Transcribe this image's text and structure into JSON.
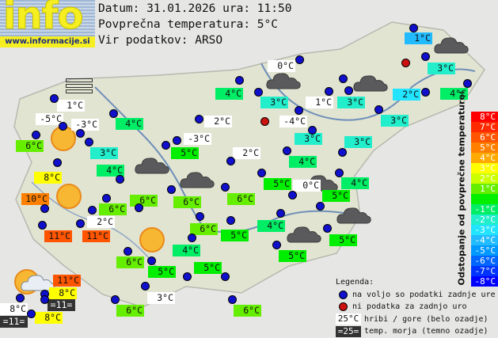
{
  "header": {
    "logo_text": "info",
    "logo_url": "www.informacije.si",
    "date_line": "Datum: 31.01.2026 ura: 11:50",
    "avg_line": "Povprečna temperatura: 5°C",
    "source_line": "Vir podatkov: ARSO"
  },
  "average_temp": 5,
  "scale": {
    "title": "Odstopanje od povprečne temperature:",
    "rows": [
      {
        "label": "8°C",
        "dev": 8,
        "color": "#ff0000"
      },
      {
        "label": "7°C",
        "dev": 7,
        "color": "#ff2a00"
      },
      {
        "label": "6°C",
        "dev": 6,
        "color": "#ff5500"
      },
      {
        "label": "5°C",
        "dev": 5,
        "color": "#ff8000"
      },
      {
        "label": "4°C",
        "dev": 4,
        "color": "#ffaa00"
      },
      {
        "label": "3°C",
        "dev": 3,
        "color": "#ffff00"
      },
      {
        "label": "2°C",
        "dev": 2,
        "color": "#ccff00"
      },
      {
        "label": "1°C",
        "dev": 1,
        "color": "#66ee00"
      },
      {
        "label": "",
        "dev": 0,
        "color": "#00ee00"
      },
      {
        "label": "-1°C",
        "dev": -1,
        "color": "#00ee66"
      },
      {
        "label": "-2°C",
        "dev": -2,
        "color": "#22eecc"
      },
      {
        "label": "-3°C",
        "dev": -3,
        "color": "#22e4ff"
      },
      {
        "label": "-4°C",
        "dev": -4,
        "color": "#22bbff"
      },
      {
        "label": "-5°C",
        "dev": -5,
        "color": "#0099ff"
      },
      {
        "label": "-6°C",
        "dev": -6,
        "color": "#0066ff"
      },
      {
        "label": "-7°C",
        "dev": -7,
        "color": "#0033ff"
      },
      {
        "label": "-8°C",
        "dev": -8,
        "color": "#0000ff"
      }
    ]
  },
  "legend": {
    "title": "Legenda:",
    "blue_dot": "na voljo so podatki zadnje ure",
    "red_dot": "ni podatka za zadnjo uro",
    "hill_sample": "25°C",
    "hill_text": "hribi / gore (belo ozadje)",
    "sea_sample": "=25=",
    "sea_text": "temp. morja (temno ozadje)"
  },
  "stations": [
    {
      "label": "1°C",
      "temp": 1,
      "type": "valley"
    },
    {
      "label": "3°C",
      "temp": 3,
      "type": "valley"
    },
    {
      "label": "4°C",
      "temp": 4,
      "type": "valley"
    },
    {
      "label": "2°C",
      "temp": 2,
      "type": "valley"
    },
    {
      "label": "0°C",
      "temp": 0,
      "type": "hill"
    },
    {
      "label": "4°C",
      "temp": 4,
      "type": "valley"
    },
    {
      "label": "3°C",
      "temp": 3,
      "type": "valley"
    },
    {
      "label": "1°C",
      "temp": 1,
      "type": "hill"
    },
    {
      "label": "3°C",
      "temp": 3,
      "type": "valley"
    },
    {
      "label": "-4°C",
      "temp": -4,
      "type": "hill"
    },
    {
      "label": "3°C",
      "temp": 3,
      "type": "valley"
    },
    {
      "label": "3°C",
      "temp": 3,
      "type": "valley"
    },
    {
      "label": "3°C",
      "temp": 3,
      "type": "valley"
    },
    {
      "label": "4°C",
      "temp": 4,
      "type": "valley"
    },
    {
      "label": "4°C",
      "temp": 4,
      "type": "valley"
    },
    {
      "label": "5°C",
      "temp": 5,
      "type": "valley"
    },
    {
      "label": "0°C",
      "temp": 0,
      "type": "hill"
    },
    {
      "label": "5°C",
      "temp": 5,
      "type": "valley"
    },
    {
      "label": "4°C",
      "temp": 4,
      "type": "valley"
    },
    {
      "label": "5°C",
      "temp": 5,
      "type": "valley"
    },
    {
      "label": "5°C",
      "temp": 5,
      "type": "valley"
    },
    {
      "label": "2°C",
      "temp": 2,
      "type": "hill"
    },
    {
      "label": "1°C",
      "temp": 1,
      "type": "hill"
    },
    {
      "label": "-5°C",
      "temp": -5,
      "type": "hill"
    },
    {
      "label": "-3°C",
      "temp": -3,
      "type": "hill"
    },
    {
      "label": "6°C",
      "temp": 6,
      "type": "valley"
    },
    {
      "label": "3°C",
      "temp": 3,
      "type": "valley"
    },
    {
      "label": "8°C",
      "temp": 8,
      "type": "valley"
    },
    {
      "label": "4°C",
      "temp": 4,
      "type": "valley"
    },
    {
      "label": "4°C",
      "temp": 4,
      "type": "valley"
    },
    {
      "label": "2°C",
      "temp": 2,
      "type": "hill"
    },
    {
      "label": "-3°C",
      "temp": -3,
      "type": "hill"
    },
    {
      "label": "5°C",
      "temp": 5,
      "type": "valley"
    },
    {
      "label": "10°C",
      "temp": 10,
      "type": "valley"
    },
    {
      "label": "11°C",
      "temp": 11,
      "type": "valley"
    },
    {
      "label": "11°C",
      "temp": 11,
      "type": "valley"
    },
    {
      "label": "6°C",
      "temp": 6,
      "type": "valley"
    },
    {
      "label": "2°C",
      "temp": 2,
      "type": "hill"
    },
    {
      "label": "6°C",
      "temp": 6,
      "type": "valley"
    },
    {
      "label": "6°C",
      "temp": 6,
      "type": "valley"
    },
    {
      "label": "6°C",
      "temp": 6,
      "type": "valley"
    },
    {
      "label": "6°C",
      "temp": 6,
      "type": "valley"
    },
    {
      "label": "5°C",
      "temp": 5,
      "type": "valley"
    },
    {
      "label": "4°C",
      "temp": 4,
      "type": "valley"
    },
    {
      "label": "6°C",
      "temp": 6,
      "type": "valley"
    },
    {
      "label": "5°C",
      "temp": 5,
      "type": "valley"
    },
    {
      "label": "5°C",
      "temp": 5,
      "type": "valley"
    },
    {
      "label": "11°C",
      "temp": 11,
      "type": "valley"
    },
    {
      "label": "8°C",
      "temp": 8,
      "type": "valley"
    },
    {
      "label": "=11=",
      "temp": 11,
      "type": "sea"
    },
    {
      "label": "8°C",
      "temp": 8,
      "type": "hill"
    },
    {
      "label": "=11=",
      "temp": 11,
      "type": "sea"
    },
    {
      "label": "8°C",
      "temp": 8,
      "type": "valley"
    },
    {
      "label": "6°C",
      "temp": 6,
      "type": "valley"
    },
    {
      "label": "3°C",
      "temp": 3,
      "type": "hill"
    },
    {
      "label": "6°C",
      "temp": 6,
      "type": "valley"
    }
  ],
  "weather_icons": [
    "fog-icon",
    "cloud-icon",
    "sun-icon",
    "partly-cloudy-icon"
  ]
}
